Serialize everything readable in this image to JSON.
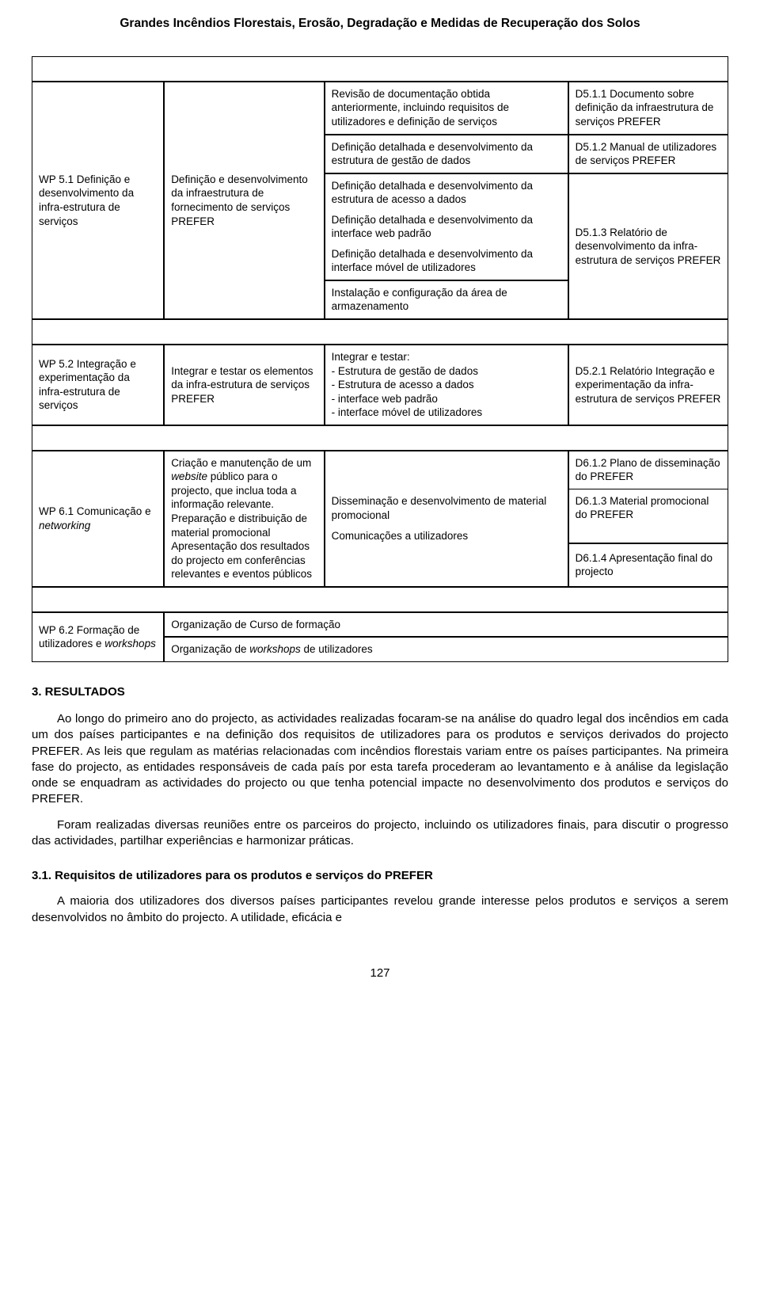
{
  "page": {
    "title": "Grandes Incêndios Florestais, Erosão, Degradação e Medidas de Recuperação dos Solos",
    "number": "127"
  },
  "table": {
    "rows": {
      "wp51": {
        "col1": "WP 5.1 Definição e desenvolvimento da infra-estrutura de serviços",
        "col2": "Definição e desenvolvimento da infraestrutura de fornecimento de serviços PREFER",
        "col3_a": "Revisão de documentação obtida anteriormente, incluindo requisitos de utilizadores e definição de serviços",
        "col3_b": "Definição detalhada e desenvolvimento da estrutura de gestão de dados",
        "col3_c1": "Definição detalhada e desenvolvimento da estrutura de acesso a dados",
        "col3_c2": "Definição detalhada e desenvolvimento da interface web padrão",
        "col3_c3": "Definição detalhada e desenvolvimento da interface móvel de utilizadores",
        "col3_c4": "Instalação e configuração da área de armazenamento",
        "col4_a": "D5.1.1 Documento sobre definição da infraestrutura de serviços PREFER",
        "col4_b": "D5.1.2 Manual de utilizadores de serviços PREFER",
        "col4_c": "D5.1.3 Relatório de desenvolvimento da infra-estrutura de serviços PREFER"
      },
      "wp52": {
        "col1": "WP 5.2 Integração e experimentação da infra-estrutura de serviços",
        "col2": "Integrar e testar os elementos da infra-estrutura de serviços PREFER",
        "col3": "Integrar e testar:\n- Estrutura de gestão de dados\n- Estrutura de acesso a dados\n- interface web padrão\n- interface móvel de utilizadores",
        "col4": "D5.2.1 Relatório Integração e experimentação da infra-estrutura de serviços PREFER"
      },
      "wp61": {
        "col1": "WP 6.1 Comunicação e networking",
        "col2": "Criação e manutenção de um website público para o projecto, que inclua toda a informação relevante. Preparação e distribuição de material promocional Apresentação dos resultados do projecto em conferências relevantes e eventos públicos",
        "col3_a": "Disseminação e desenvolvimento de material promocional",
        "col3_b": "Comunicações a utilizadores",
        "col4_a": "D6.1.2 Plano de disseminação do PREFER",
        "col4_b": "D6.1.3 Material promocional do PREFER",
        "col4_c": "D6.1.4 Apresentação final do projecto"
      },
      "wp62": {
        "col1": "WP 6.2 Formação de utilizadores e workshops",
        "col23_a": "Organização de Curso de formação",
        "col23_b": "Organização de workshops de utilizadores"
      }
    }
  },
  "sections": {
    "resultados": {
      "heading": "3. RESULTADOS",
      "p1": "Ao longo do primeiro ano do projecto, as actividades realizadas focaram-se na análise do quadro legal dos incêndios em cada um dos países participantes e na definição dos requisitos de utilizadores para os produtos e serviços derivados do projecto PREFER. As leis que regulam as matérias relacionadas com incêndios florestais variam entre os países participantes. Na primeira fase do projecto, as entidades responsáveis de cada país por esta tarefa procederam ao levantamento e à análise da legislação onde se enquadram as actividades do projecto ou que tenha potencial impacte no desenvolvimento dos produtos e serviços do PREFER.",
      "p2": "Foram realizadas diversas reuniões entre os parceiros do projecto, incluindo os utilizadores finais, para discutir o progresso das actividades, partilhar experiências e harmonizar práticas."
    },
    "sub31": {
      "heading": "3.1. Requisitos de utilizadores para os produtos e serviços do PREFER",
      "p1": "A maioria dos utilizadores dos diversos países participantes revelou grande interesse pelos produtos e serviços a serem desenvolvidos no âmbito do projecto. A utilidade, eficácia e"
    }
  }
}
